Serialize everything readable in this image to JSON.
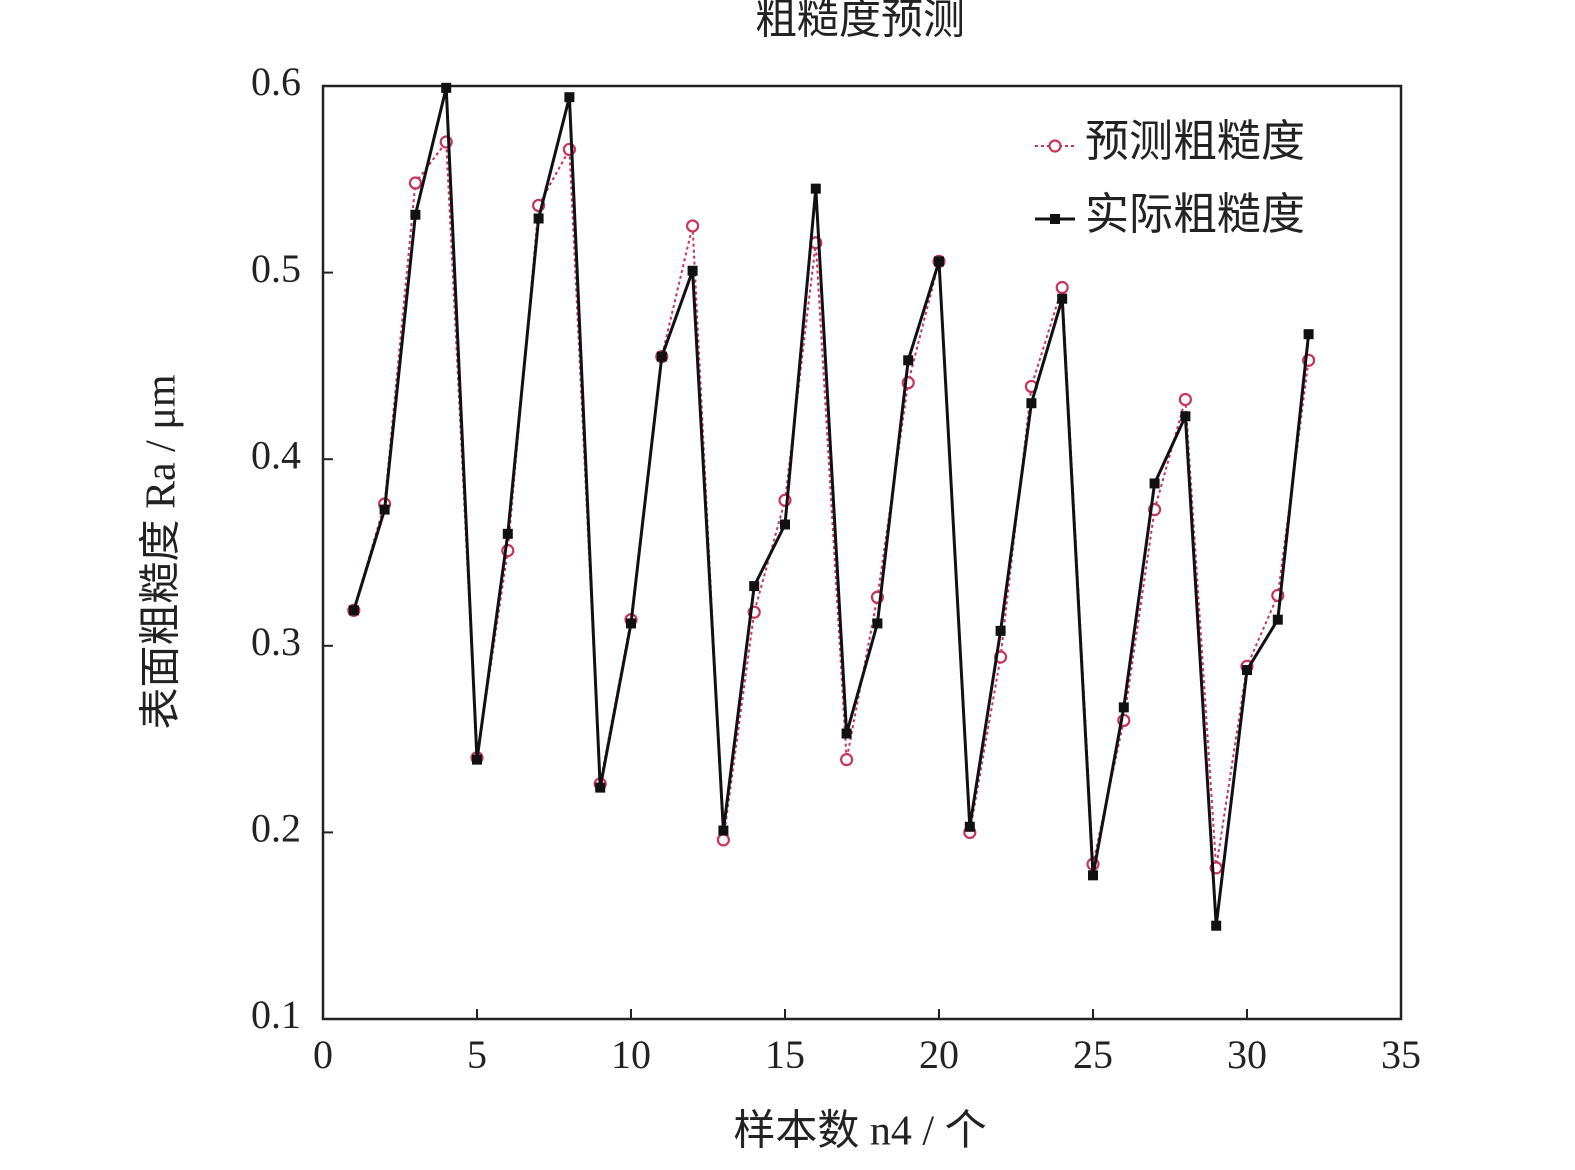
{
  "chart_data": {
    "type": "line",
    "title": "粗糙度预测",
    "xlabel": "样本数 n4 / 个",
    "ylabel": "表面粗糙度 Ra / μm",
    "x": [
      1,
      2,
      3,
      4,
      5,
      6,
      7,
      8,
      9,
      10,
      11,
      12,
      13,
      14,
      15,
      16,
      17,
      18,
      19,
      20,
      21,
      22,
      23,
      24,
      25,
      26,
      27,
      28,
      29,
      30,
      31,
      32
    ],
    "series": [
      {
        "name": "预测粗糙度",
        "color": "#c8345a",
        "dash": "dotted",
        "marker": "open-circle",
        "values": [
          0.319,
          0.376,
          0.548,
          0.57,
          0.24,
          0.351,
          0.536,
          0.566,
          0.226,
          0.314,
          0.455,
          0.525,
          0.196,
          0.318,
          0.378,
          0.516,
          0.239,
          0.326,
          0.441,
          0.506,
          0.2,
          0.294,
          0.439,
          0.492,
          0.183,
          0.26,
          0.373,
          0.432,
          0.181,
          0.289,
          0.327,
          0.453
        ]
      },
      {
        "name": "实际粗糙度",
        "color": "#111111",
        "dash": "solid",
        "marker": "filled-square",
        "values": [
          0.319,
          0.373,
          0.531,
          0.599,
          0.239,
          0.36,
          0.529,
          0.594,
          0.224,
          0.312,
          0.455,
          0.501,
          0.201,
          0.332,
          0.365,
          0.545,
          0.253,
          0.312,
          0.453,
          0.506,
          0.203,
          0.308,
          0.43,
          0.486,
          0.177,
          0.267,
          0.387,
          0.423,
          0.15,
          0.287,
          0.314,
          0.467
        ]
      }
    ],
    "xlim": [
      0,
      35
    ],
    "xticks": [
      0,
      5,
      10,
      15,
      20,
      25,
      30,
      35
    ],
    "ylim": [
      0.1,
      0.6
    ],
    "yticks": [
      0.1,
      0.2,
      0.3,
      0.4,
      0.5,
      0.6
    ],
    "legend": "upper right"
  }
}
